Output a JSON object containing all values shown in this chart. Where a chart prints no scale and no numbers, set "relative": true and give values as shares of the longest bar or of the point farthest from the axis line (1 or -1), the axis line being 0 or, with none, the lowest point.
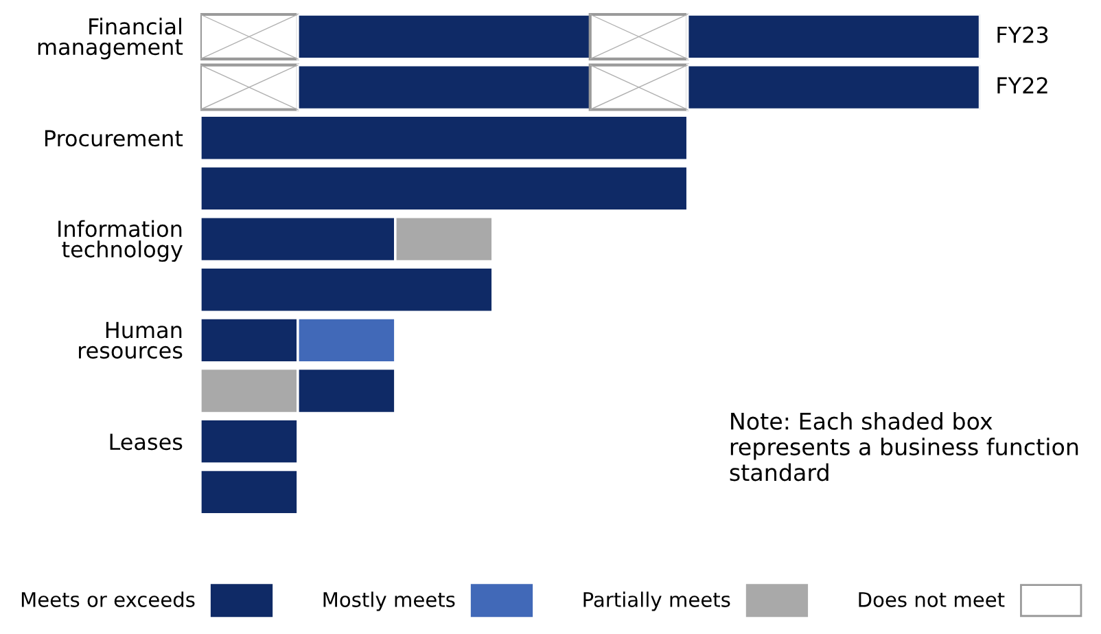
{
  "chart_data": {
    "type": "bar",
    "orientation": "horizontal",
    "stacked": true,
    "relative": true,
    "categories": [
      "Financial management",
      null,
      "Procurement",
      null,
      "Information technology",
      null,
      "Human resources",
      null,
      "Leases",
      null
    ],
    "series": [
      {
        "name": "Meets or exceeds",
        "color": "#0f2a66",
        "values": [
          null,
          null,
          0.625,
          0.625,
          0.25,
          0.375,
          0.125,
          null,
          0.125,
          0.125
        ]
      },
      {
        "name": "Mostly meets",
        "color": "#4169b8",
        "values": [
          null,
          null,
          null,
          null,
          null,
          null,
          0.125,
          null,
          null,
          null
        ]
      },
      {
        "name": "Partially meets",
        "color": "#a9a9a9",
        "values": [
          null,
          null,
          null,
          null,
          0.125,
          null,
          null,
          0.125,
          null,
          null
        ]
      },
      {
        "name": "Does not meet",
        "color": "#ffffff",
        "values": [
          0.125,
          0.125,
          null,
          null,
          null,
          null,
          null,
          null,
          null,
          null
        ]
      },
      {
        "color": "#0f2a66",
        "values": [
          0.375,
          0.375,
          null,
          null,
          null,
          null,
          null,
          0.125,
          null,
          null
        ]
      },
      {
        "color": "#ffffff",
        "values": [
          0.125,
          0.125,
          null,
          null,
          null,
          null,
          null,
          null,
          null,
          null
        ]
      },
      {
        "color": "#0f2a66",
        "values": [
          0.375,
          0.375,
          null,
          null,
          null,
          null,
          null,
          null,
          null,
          null
        ]
      }
    ],
    "legend": "bottom",
    "annotations": [
      "FY23",
      "FY22",
      "Note: Each shaded box represents a business function standard"
    ]
  }
}
